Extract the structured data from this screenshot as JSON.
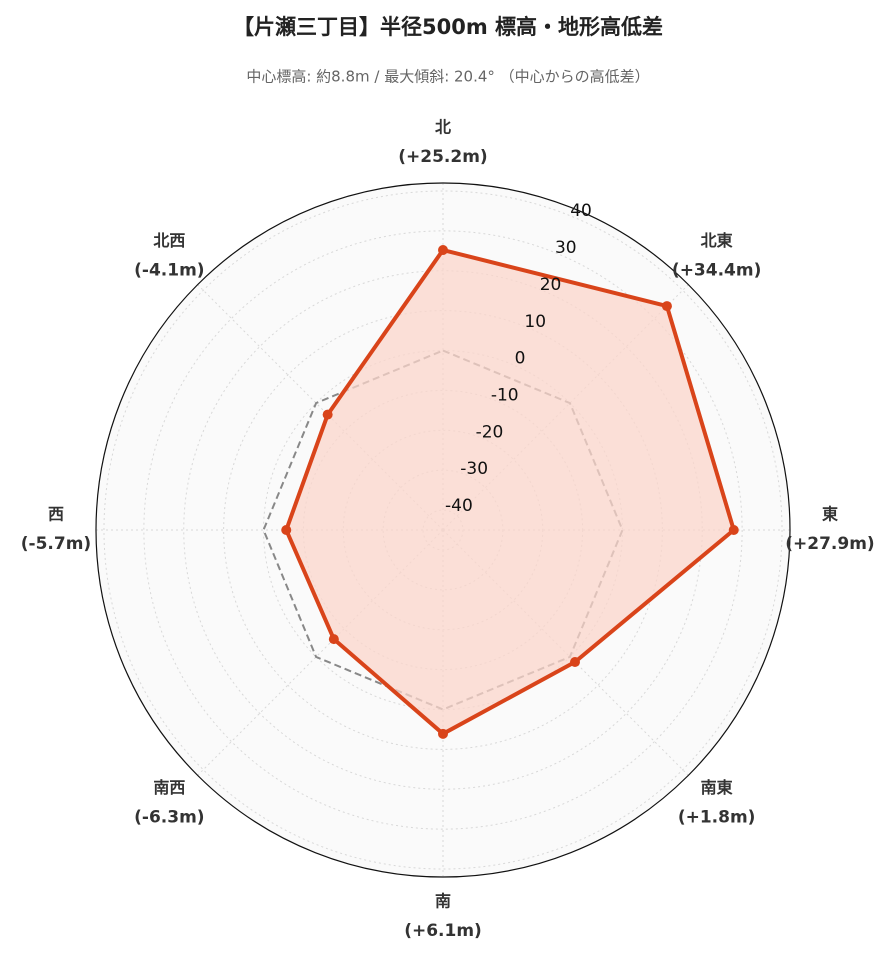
{
  "chart_data": {
    "type": "radar",
    "title": "【片瀬三丁目】半径500m 標高・地形高低差",
    "subtitle": "中心標高: 約8.8m / 最大傾斜: 20.4° （中心からの高低差）",
    "categories": [
      "北",
      "北東",
      "東",
      "南東",
      "南",
      "南西",
      "西",
      "北西"
    ],
    "values": [
      25.2,
      34.4,
      27.9,
      1.8,
      6.1,
      -6.3,
      -5.7,
      -4.1
    ],
    "value_labels": [
      "(+25.2m)",
      "(+34.4m)",
      "(+27.9m)",
      "(+1.8m)",
      "(+6.1m)",
      "(-6.3m)",
      "(-5.7m)",
      "(-4.1m)"
    ],
    "color": "#d9441a",
    "fill_color": "#fbd5cb",
    "baseline": 0,
    "baseline_color": "#888888",
    "rlim": [
      -45,
      42
    ],
    "rticks": [
      -40,
      -30,
      -20,
      -10,
      0,
      10,
      20,
      30,
      40
    ],
    "grid": true
  }
}
